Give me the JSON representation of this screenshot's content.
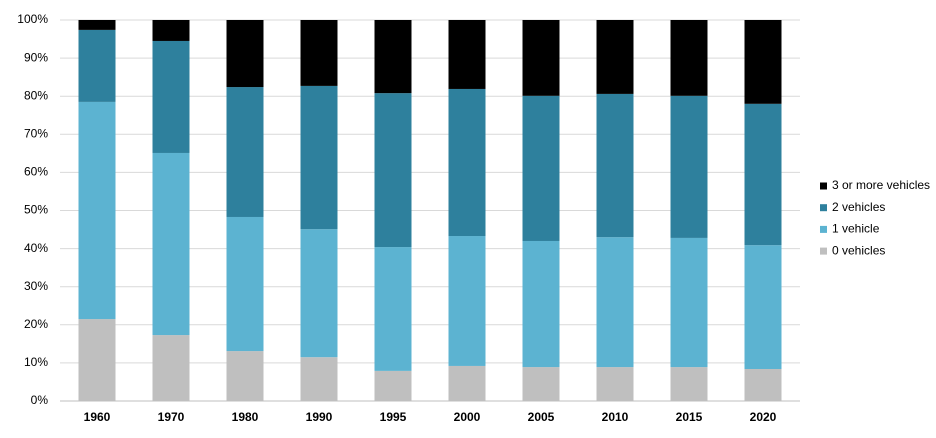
{
  "chart_data": {
    "type": "stacked_bar_100",
    "categories": [
      "1960",
      "1970",
      "1980",
      "1990",
      "1995",
      "2000",
      "2005",
      "2010",
      "2015",
      "2020"
    ],
    "series": [
      {
        "name": "0 vehicles",
        "color": "#bfbfbf",
        "values": [
          21.5,
          17.3,
          13.1,
          11.5,
          7.9,
          9.2,
          8.9,
          8.9,
          8.9,
          8.4
        ]
      },
      {
        "name": "1 vehicle",
        "color": "#5cb3d1",
        "values": [
          57.0,
          47.8,
          35.2,
          33.6,
          32.5,
          34.1,
          33.1,
          34.1,
          33.9,
          32.5
        ]
      },
      {
        "name": "2 vehicles",
        "color": "#2e809d",
        "values": [
          18.9,
          29.4,
          34.1,
          37.6,
          40.4,
          38.6,
          38.1,
          37.6,
          37.3,
          37.1
        ]
      },
      {
        "name": "3 or more vehicles",
        "color": "#000000",
        "values": [
          2.6,
          5.5,
          17.6,
          17.3,
          19.2,
          18.1,
          19.9,
          19.4,
          19.9,
          22.0
        ]
      }
    ],
    "ylim": [
      0,
      100
    ],
    "yticks": [
      {
        "value": 0,
        "label": "0%"
      },
      {
        "value": 10,
        "label": "10%"
      },
      {
        "value": 20,
        "label": "20%"
      },
      {
        "value": 30,
        "label": "30%"
      },
      {
        "value": 40,
        "label": "40%"
      },
      {
        "value": 50,
        "label": "50%"
      },
      {
        "value": 60,
        "label": "60%"
      },
      {
        "value": 70,
        "label": "70%"
      },
      {
        "value": 80,
        "label": "80%"
      },
      {
        "value": 90,
        "label": "90%"
      },
      {
        "value": 100,
        "label": "100%"
      }
    ],
    "grid": true,
    "legend": "right"
  }
}
